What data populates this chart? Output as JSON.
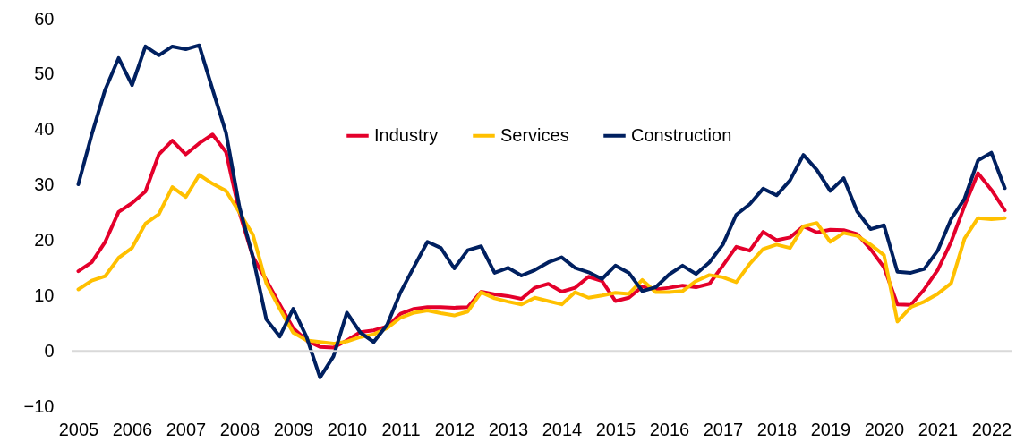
{
  "chart_data": {
    "type": "line",
    "categories": [
      "2005",
      null,
      null,
      null,
      "2006",
      null,
      null,
      null,
      "2007",
      null,
      null,
      null,
      "2008",
      null,
      null,
      null,
      "2009",
      null,
      null,
      null,
      "2010",
      null,
      null,
      null,
      "2011",
      null,
      null,
      null,
      "2012",
      null,
      null,
      null,
      "2013",
      null,
      null,
      null,
      "2014",
      null,
      null,
      null,
      "2015",
      null,
      null,
      null,
      "2016",
      null,
      null,
      null,
      "2017",
      null,
      null,
      null,
      "2018",
      null,
      null,
      null,
      "2019",
      null,
      null,
      null,
      "2020",
      null,
      null,
      null,
      "2021",
      null,
      null,
      null,
      "2022",
      null
    ],
    "series": [
      {
        "name": "Industry",
        "color": "#e4002b",
        "values": [
          14.4,
          16.0,
          19.7,
          25.1,
          26.7,
          28.8,
          35.5,
          38.0,
          35.5,
          37.5,
          39.1,
          35.9,
          25,
          17,
          12.8,
          8.4,
          4.1,
          1.9,
          0.7,
          0.6,
          1.9,
          3.4,
          3.7,
          4.4,
          6.7,
          7.6,
          7.9,
          7.9,
          7.8,
          7.9,
          10.7,
          10.2,
          9.9,
          9.4,
          11.4,
          12.1,
          10.7,
          11.4,
          13.4,
          12.6,
          9.0,
          9.6,
          11.6,
          11.1,
          11.4,
          11.8,
          11.5,
          12.1,
          15.4,
          18.8,
          18.1,
          21.5,
          20.0,
          20.5,
          22.5,
          21.4,
          21.9,
          21.8,
          21.1,
          18.4,
          15.1,
          8.4,
          8.3,
          11.1,
          14.6,
          19.7,
          26.2,
          32.1,
          29.1,
          25.4
        ]
      },
      {
        "name": "Services",
        "color": "#ffc000",
        "values": [
          11.1,
          12.7,
          13.5,
          16.8,
          18.6,
          23.0,
          24.7,
          29.6,
          27.8,
          31.8,
          30.2,
          28.9,
          25,
          21,
          12.2,
          7.6,
          3.3,
          1.9,
          1.6,
          1.3,
          1.7,
          2.5,
          3.0,
          4.1,
          6.0,
          6.9,
          7.3,
          6.8,
          6.4,
          7.1,
          10.6,
          9.5,
          8.9,
          8.4,
          9.6,
          9.0,
          8.4,
          10.6,
          9.6,
          10.0,
          10.5,
          10.3,
          12.8,
          10.6,
          10.6,
          10.8,
          12.6,
          13.7,
          13.3,
          12.4,
          15.7,
          18.4,
          19.2,
          18.6,
          22.5,
          23.1,
          19.7,
          21.3,
          20.8,
          19.2,
          17.3,
          5.3,
          7.9,
          8.9,
          10.3,
          12.2,
          20.3,
          24.0,
          23.8,
          24.0
        ]
      },
      {
        "name": "Construction",
        "color": "#002060",
        "values": [
          30.1,
          39.1,
          47.2,
          52.9,
          48.0,
          55.0,
          53.4,
          55.0,
          54.5,
          55.2,
          47.2,
          39.4,
          26,
          17,
          5.7,
          2.6,
          7.6,
          2.5,
          -4.8,
          -1.0,
          6.9,
          3.3,
          1.6,
          4.7,
          10.6,
          15.2,
          19.7,
          18.6,
          14.9,
          18.2,
          18.9,
          14.1,
          15.0,
          13.6,
          14.6,
          16.0,
          16.9,
          15.0,
          14.2,
          13.0,
          15.4,
          14.1,
          10.8,
          11.5,
          13.8,
          15.4,
          13.9,
          16.0,
          19.2,
          24.6,
          26.5,
          29.3,
          28.1,
          30.8,
          35.4,
          32.7,
          28.9,
          31.2,
          25.2,
          22.0,
          22.7,
          14.3,
          14.1,
          14.8,
          18.1,
          23.8,
          27.5,
          34.4,
          35.8,
          29.4
        ]
      }
    ],
    "ylim": [
      -10,
      60
    ],
    "yticks": [
      -10,
      0,
      10,
      20,
      30,
      40,
      50,
      60
    ],
    "ref_lines": [
      {
        "axis": "y",
        "value": 0,
        "color": "#d9d9d9"
      }
    ],
    "grid": false,
    "legend": "top",
    "marker": "none",
    "line_style": "solid"
  }
}
